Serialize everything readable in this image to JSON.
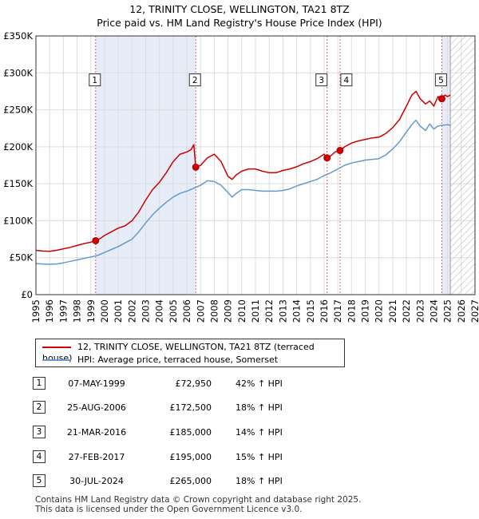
{
  "chart_data": {
    "type": "line",
    "title": "12, TRINITY CLOSE, WELLINGTON, TA21 8TZ",
    "subtitle": "Price paid vs. HM Land Registry's House Price Index (HPI)",
    "xlabel": "",
    "ylabel": "",
    "xlim": [
      1995,
      2027
    ],
    "ylim": [
      0,
      350000
    ],
    "y_ticks": [
      0,
      50000,
      100000,
      150000,
      200000,
      250000,
      300000,
      350000
    ],
    "y_tick_labels": [
      "£0",
      "£50K",
      "£100K",
      "£150K",
      "£200K",
      "£250K",
      "£300K",
      "£350K"
    ],
    "x_ticks": [
      1995,
      1996,
      1997,
      1998,
      1999,
      2000,
      2001,
      2002,
      2003,
      2004,
      2005,
      2006,
      2007,
      2008,
      2009,
      2010,
      2011,
      2012,
      2013,
      2014,
      2015,
      2016,
      2017,
      2018,
      2019,
      2020,
      2021,
      2022,
      2023,
      2024,
      2025,
      2026,
      2027
    ],
    "x_tick_labels": [
      "1995",
      "1996",
      "1997",
      "1998",
      "1999",
      "2000",
      "2001",
      "2002",
      "2003",
      "2004",
      "2005",
      "2006",
      "2007",
      "2008",
      "2009",
      "2010",
      "2011",
      "2012",
      "2013",
      "2014",
      "2015",
      "2016",
      "2017",
      "2018",
      "2019",
      "2020",
      "2021",
      "2022",
      "2023",
      "2024",
      "2025",
      "2026",
      "2027"
    ],
    "grid": true,
    "data_end_year": 2025.2,
    "shaded_ranges": [
      [
        1999.35,
        2006.65
      ],
      [
        2024.58,
        2025.2
      ]
    ],
    "series": [
      {
        "name": "12, TRINITY CLOSE, WELLINGTON, TA21 8TZ (terraced house)",
        "color": "#cc0000",
        "x": [
          1995,
          1995.5,
          1996,
          1996.5,
          1997,
          1997.5,
          1998,
          1998.5,
          1999,
          1999.35,
          1999.7,
          2000,
          2000.5,
          2001,
          2001.5,
          2002,
          2002.5,
          2003,
          2003.5,
          2004,
          2004.5,
          2005,
          2005.5,
          2006,
          2006.3,
          2006.5,
          2006.65,
          2007,
          2007.5,
          2008,
          2008.5,
          2009,
          2009.3,
          2009.6,
          2010,
          2010.5,
          2011,
          2011.5,
          2012,
          2012.5,
          2013,
          2013.5,
          2014,
          2014.5,
          2015,
          2015.5,
          2016,
          2016.22,
          2016.5,
          2016.8,
          2017.16,
          2017.5,
          2018,
          2018.5,
          2019,
          2019.5,
          2020,
          2020.5,
          2021,
          2021.5,
          2022,
          2022.4,
          2022.7,
          2023,
          2023.4,
          2023.7,
          2024,
          2024.3,
          2024.58,
          2024.8,
          2025,
          2025.2
        ],
        "values": [
          60000,
          59000,
          58500,
          60000,
          62000,
          64000,
          66500,
          69000,
          71000,
          72950,
          76000,
          80000,
          85000,
          90000,
          93000,
          100000,
          112000,
          128000,
          142000,
          152000,
          165000,
          180000,
          190000,
          193000,
          196000,
          203000,
          172500,
          175000,
          185000,
          190000,
          180000,
          160000,
          156000,
          162000,
          167000,
          170000,
          170000,
          167000,
          165000,
          165000,
          168000,
          170000,
          173000,
          177000,
          180000,
          184000,
          190000,
          185000,
          188000,
          193000,
          195000,
          200000,
          205000,
          208000,
          210000,
          212000,
          213000,
          218000,
          226000,
          237000,
          255000,
          270000,
          275000,
          265000,
          258000,
          262000,
          255000,
          268000,
          265000,
          270000,
          268000,
          270000
        ]
      },
      {
        "name": "HPI: Average price, terraced house, Somerset",
        "color": "#6699cc",
        "x": [
          1995,
          1995.5,
          1996,
          1996.5,
          1997,
          1997.5,
          1998,
          1998.5,
          1999,
          1999.5,
          2000,
          2000.5,
          2001,
          2001.5,
          2002,
          2002.5,
          2003,
          2003.5,
          2004,
          2004.5,
          2005,
          2005.5,
          2006,
          2006.5,
          2007,
          2007.5,
          2008,
          2008.5,
          2009,
          2009.3,
          2009.6,
          2010,
          2010.5,
          2011,
          2011.5,
          2012,
          2012.5,
          2013,
          2013.5,
          2014,
          2014.5,
          2015,
          2015.5,
          2016,
          2016.5,
          2017,
          2017.5,
          2018,
          2018.5,
          2019,
          2019.5,
          2020,
          2020.5,
          2021,
          2021.5,
          2022,
          2022.4,
          2022.7,
          2023,
          2023.4,
          2023.7,
          2024,
          2024.3,
          2024.6,
          2025,
          2025.2
        ],
        "values": [
          42000,
          41500,
          41000,
          41500,
          43000,
          45000,
          47000,
          49000,
          51000,
          53000,
          57000,
          61000,
          65000,
          70000,
          75000,
          85000,
          97000,
          108000,
          117000,
          125000,
          132000,
          137000,
          140000,
          144000,
          148000,
          154000,
          153000,
          148000,
          138000,
          132000,
          137000,
          142000,
          142000,
          141000,
          140000,
          140000,
          140000,
          141000,
          143000,
          147000,
          150000,
          153000,
          156000,
          161000,
          165000,
          170000,
          175000,
          178000,
          180000,
          182000,
          183000,
          184000,
          189000,
          197000,
          207000,
          220000,
          230000,
          236000,
          228000,
          222000,
          231000,
          224000,
          228000,
          229000,
          230000,
          229000
        ]
      }
    ],
    "sales": [
      {
        "num": "1",
        "x": 1999.35,
        "price": 72950
      },
      {
        "num": "2",
        "x": 2006.65,
        "price": 172500
      },
      {
        "num": "3",
        "x": 2016.22,
        "price": 185000
      },
      {
        "num": "4",
        "x": 2017.16,
        "price": 195000
      },
      {
        "num": "5",
        "x": 2024.58,
        "price": 265000
      }
    ],
    "marker_label_price": 290000
  },
  "legend": {
    "property_label": "12, TRINITY CLOSE, WELLINGTON, TA21 8TZ (terraced house)",
    "hpi_label": "HPI: Average price, terraced house, Somerset"
  },
  "sales_table": [
    {
      "num": "1",
      "date": "07-MAY-1999",
      "price": "£72,950",
      "hpi": "42% ↑ HPI"
    },
    {
      "num": "2",
      "date": "25-AUG-2006",
      "price": "£172,500",
      "hpi": "18% ↑ HPI"
    },
    {
      "num": "3",
      "date": "21-MAR-2016",
      "price": "£185,000",
      "hpi": "14% ↑ HPI"
    },
    {
      "num": "4",
      "date": "27-FEB-2017",
      "price": "£195,000",
      "hpi": "15% ↑ HPI"
    },
    {
      "num": "5",
      "date": "30-JUL-2024",
      "price": "£265,000",
      "hpi": "18% ↑ HPI"
    }
  ],
  "footer": {
    "line1": "Contains HM Land Registry data © Crown copyright and database right 2025.",
    "line2": "This data is licensed under the Open Government Licence v3.0."
  },
  "colors": {
    "property": "#cc0000",
    "hpi": "#6699cc",
    "shade": "#e6ecf8",
    "grid": "#dddddd"
  }
}
